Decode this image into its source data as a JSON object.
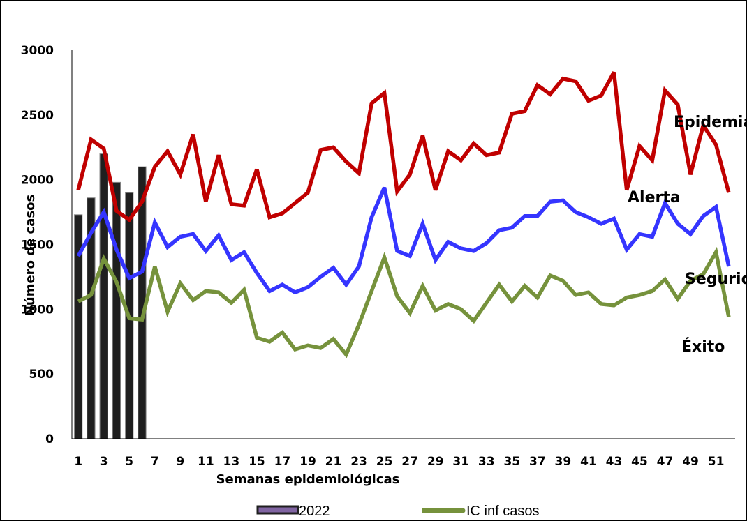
{
  "chart_data": {
    "type": "bar+line",
    "xlabel": "Semanas epidemiológicas",
    "ylabel": "Número de casos",
    "ylim": [
      0,
      3000
    ],
    "yticks": [
      0,
      500,
      1000,
      1500,
      2000,
      2500,
      3000
    ],
    "x": [
      1,
      2,
      3,
      4,
      5,
      6,
      7,
      8,
      9,
      10,
      11,
      12,
      13,
      14,
      15,
      16,
      17,
      18,
      19,
      20,
      21,
      22,
      23,
      24,
      25,
      26,
      27,
      28,
      29,
      30,
      31,
      32,
      33,
      34,
      35,
      36,
      37,
      38,
      39,
      40,
      41,
      42,
      43,
      44,
      45,
      46,
      47,
      48,
      49,
      50,
      51,
      52
    ],
    "xtick_labels": [
      "1",
      "3",
      "5",
      "7",
      "9",
      "11",
      "13",
      "15",
      "17",
      "19",
      "21",
      "23",
      "25",
      "27",
      "29",
      "31",
      "33",
      "35",
      "37",
      "39",
      "41",
      "43",
      "45",
      "47",
      "49",
      "51"
    ],
    "bars": {
      "name": "2022",
      "x": [
        1,
        2,
        3,
        4,
        5,
        6
      ],
      "values": [
        1730,
        1860,
        2200,
        1980,
        1900,
        2100
      ],
      "color": "#1f1f1f"
    },
    "series": [
      {
        "color": "#c00000",
        "values": [
          1920,
          2310,
          2240,
          1760,
          1690,
          1830,
          2100,
          2220,
          2040,
          2350,
          1830,
          2190,
          1810,
          1800,
          2080,
          1710,
          1740,
          1820,
          1900,
          2230,
          2250,
          2140,
          2050,
          2590,
          2670,
          1910,
          2040,
          2340,
          1920,
          2220,
          2150,
          2280,
          2190,
          2210,
          2510,
          2530,
          2730,
          2660,
          2780,
          2760,
          2610,
          2650,
          2830,
          1920,
          2260,
          2150,
          2690,
          2580,
          2040,
          2420,
          2270,
          1900
        ]
      },
      {
        "color": "#3535ff",
        "values": [
          1410,
          1590,
          1750,
          1460,
          1240,
          1290,
          1670,
          1480,
          1560,
          1580,
          1450,
          1570,
          1380,
          1440,
          1280,
          1140,
          1190,
          1130,
          1170,
          1250,
          1320,
          1190,
          1330,
          1710,
          1940,
          1450,
          1410,
          1660,
          1380,
          1520,
          1470,
          1450,
          1510,
          1610,
          1630,
          1720,
          1720,
          1830,
          1840,
          1750,
          1710,
          1660,
          1700,
          1460,
          1580,
          1560,
          1820,
          1660,
          1580,
          1720,
          1790,
          1330
        ]
      },
      {
        "name": "IC inf casos",
        "color": "#76923c",
        "values": [
          1060,
          1110,
          1390,
          1210,
          930,
          920,
          1330,
          980,
          1200,
          1070,
          1140,
          1130,
          1050,
          1150,
          780,
          750,
          820,
          690,
          720,
          700,
          770,
          650,
          880,
          1140,
          1400,
          1100,
          970,
          1180,
          990,
          1040,
          1000,
          910,
          1050,
          1190,
          1060,
          1180,
          1090,
          1260,
          1220,
          1110,
          1130,
          1040,
          1030,
          1090,
          1110,
          1140,
          1230,
          1080,
          1220,
          1270,
          1440,
          940
        ]
      }
    ],
    "annotations": {
      "epidemia": "Epidemia",
      "alerta": "Alerta",
      "seguridad": "Seguridad",
      "exito": "Éxito"
    },
    "legend": {
      "placement": "bottom-center",
      "entries": [
        "2022",
        "IC inf casos"
      ]
    },
    "grid": false
  }
}
